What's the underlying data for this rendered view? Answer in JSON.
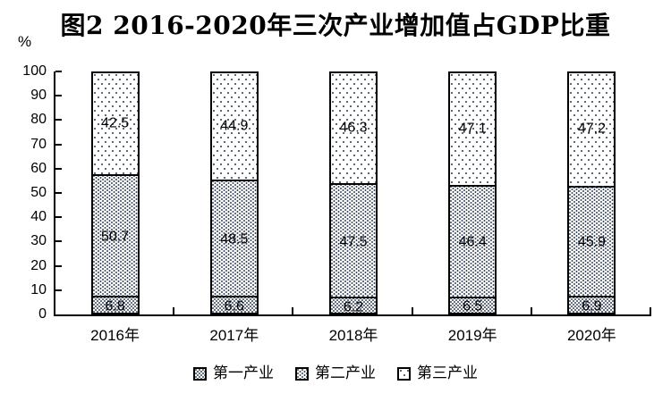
{
  "chart_data": {
    "type": "bar",
    "stacked": true,
    "title": "图2 2016-2020年三次产业增加值占GDP比重",
    "unit_label": "%",
    "categories": [
      "2016年",
      "2017年",
      "2018年",
      "2019年",
      "2020年"
    ],
    "series": [
      {
        "name": "第一产业",
        "values": [
          6.8,
          6.6,
          6.2,
          6.5,
          6.9
        ],
        "pattern": "dots-dense"
      },
      {
        "name": "第二产业",
        "values": [
          50.7,
          48.5,
          47.5,
          46.4,
          45.9
        ],
        "pattern": "dots-medium"
      },
      {
        "name": "第三产业",
        "values": [
          42.5,
          44.9,
          46.3,
          47.1,
          47.2
        ],
        "pattern": "dots-sparse"
      }
    ],
    "ylim": [
      0,
      100
    ],
    "ytick_step": 10,
    "grid": false,
    "legend_position": "bottom",
    "data_labels": true,
    "colors": {
      "dot": "#3d4b61",
      "axis": "#000000",
      "text": "#000000",
      "background": "#ffffff"
    }
  }
}
